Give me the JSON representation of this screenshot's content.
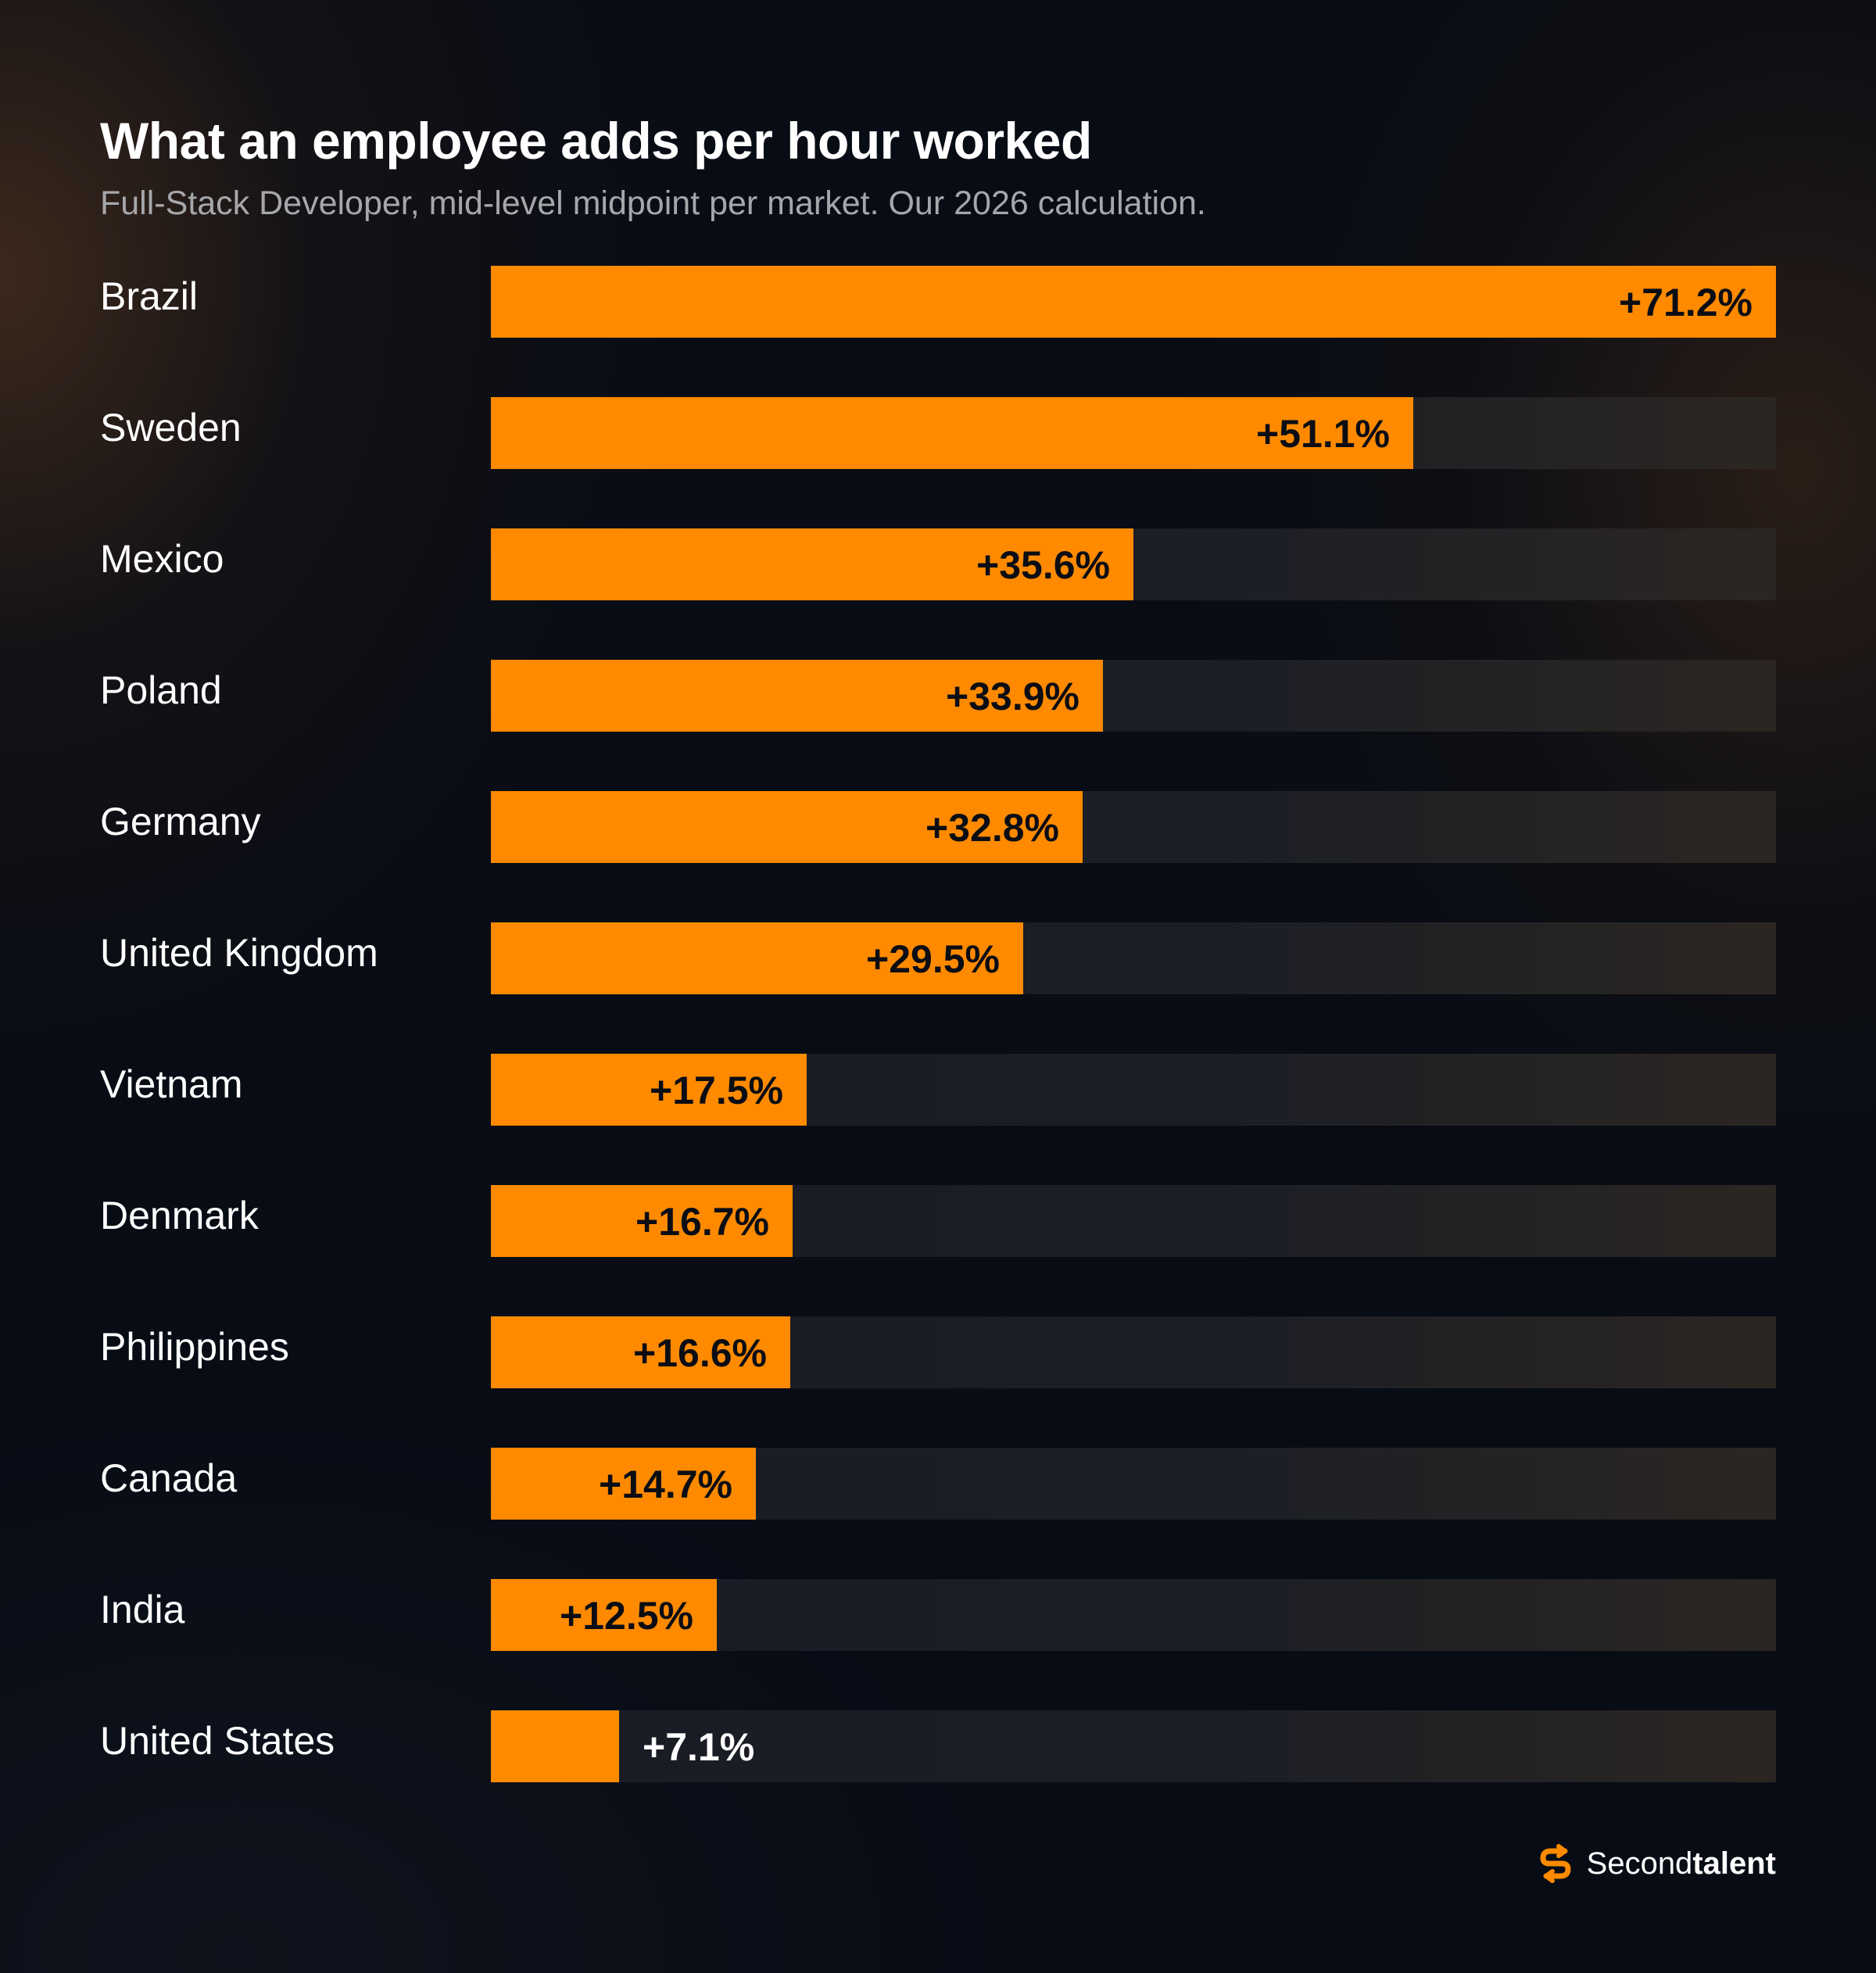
{
  "brand": {
    "name_regular": "Second",
    "name_bold": "talent",
    "accent_color": "#ff8a00",
    "logo_icon": "secondtalent-s-logo-icon"
  },
  "chart_data": {
    "type": "bar",
    "orientation": "horizontal",
    "title": "What an employee adds per hour worked",
    "subtitle": "Full-Stack Developer, mid-level midpoint per market. Our 2026 calculation.",
    "categories": [
      "Brazil",
      "Sweden",
      "Mexico",
      "Poland",
      "Germany",
      "United Kingdom",
      "Vietnam",
      "Denmark",
      "Philippines",
      "Canada",
      "India",
      "United States"
    ],
    "values": [
      71.2,
      51.1,
      35.6,
      33.9,
      32.8,
      29.5,
      17.5,
      16.7,
      16.6,
      14.7,
      12.5,
      7.1
    ],
    "value_labels": [
      "+71.2%",
      "+51.1%",
      "+35.6%",
      "+33.9%",
      "+32.8%",
      "+29.5%",
      "+17.5%",
      "+16.7%",
      "+16.6%",
      "+14.7%",
      "+12.5%",
      "+7.1%"
    ],
    "xlim": [
      0,
      71.2
    ],
    "grid": false,
    "bar_color": "#ff8a00",
    "track_color": "#1a1d25"
  }
}
